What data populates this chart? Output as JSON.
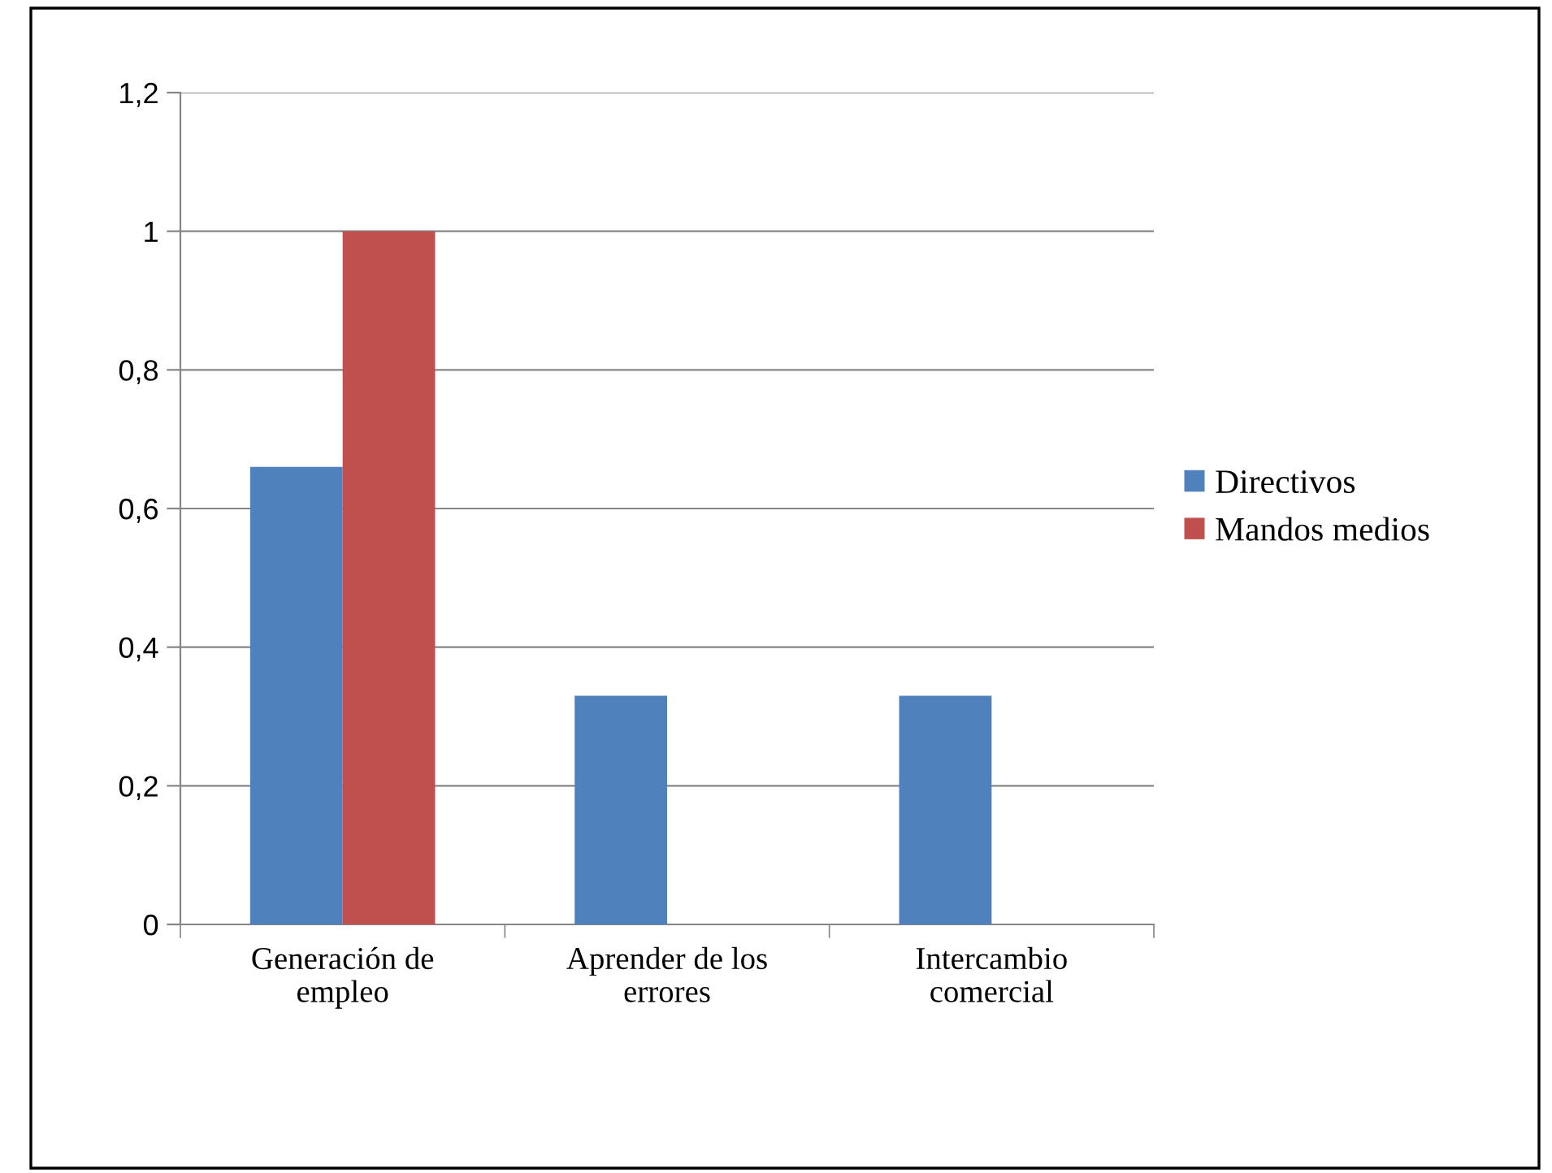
{
  "chart_data": {
    "type": "bar",
    "categories": [
      "Generación de\nempleo",
      "Aprender de los\nerrores",
      "Intercambio\ncomercial"
    ],
    "series": [
      {
        "name": "Directivos",
        "color": "#4f81bd",
        "values": [
          0.66,
          0.33,
          0.33
        ]
      },
      {
        "name": "Mandos medios",
        "color": "#c0504d",
        "values": [
          1,
          0,
          0
        ]
      }
    ],
    "ylim": [
      0,
      1.2
    ],
    "yticks": [
      0,
      {
        "value": 0.2,
        "label": "0,2"
      },
      {
        "value": 0.4,
        "label": "0,4"
      },
      {
        "value": 0.6,
        "label": "0,6"
      },
      {
        "value": 0.8,
        "label": "0,8"
      },
      1,
      {
        "value": 1.2,
        "label": "1,2"
      }
    ],
    "grid": "y",
    "legend": "right"
  }
}
